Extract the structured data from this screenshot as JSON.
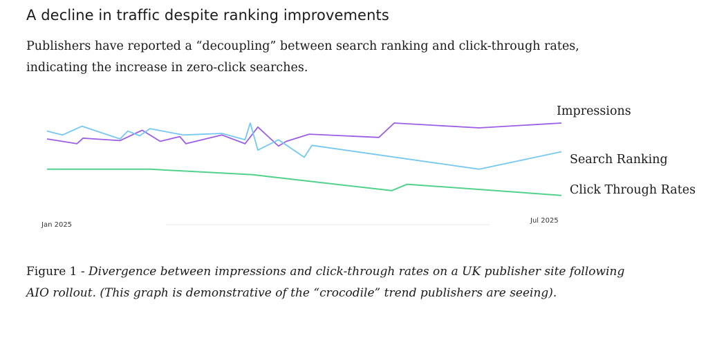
{
  "heading": "A decline in traffic despite ranking improvements",
  "intro": "Publishers have reported a “decoupling” between search ranking and click-through rates, indicating the increase in zero-click searches.",
  "caption": {
    "figure_number": "Figure 1 - ",
    "text": "Divergence between impressions and click-through rates on a UK publisher site following AIO rollout. (This graph is demonstrative of the “crocodile” trend publishers are seeing)."
  },
  "colors": {
    "impressions": "#9b5de5",
    "search_ranking": "#74c8f2",
    "click_through_rates": "#52d18c"
  },
  "chart_data": {
    "type": "line",
    "title": "",
    "xlabel": "",
    "ylabel": "",
    "x_tick_labels": [
      "Jan 2025",
      "Jul 2025"
    ],
    "xlim": [
      0,
      1
    ],
    "ylim": [
      0,
      100
    ],
    "grid": false,
    "legend": "inline-right",
    "series": [
      {
        "name": "Impressions",
        "color": "#9b5de5",
        "x": [
          0,
          0.058,
          0.07,
          0.142,
          0.185,
          0.22,
          0.258,
          0.27,
          0.34,
          0.385,
          0.41,
          0.45,
          0.465,
          0.51,
          0.645,
          0.675,
          0.84,
          1
        ],
        "y": [
          73,
          67,
          74,
          71,
          84,
          70,
          76,
          67,
          78,
          67,
          88,
          64,
          70,
          79,
          75,
          93,
          87,
          93
        ]
      },
      {
        "name": "Search Ranking",
        "color": "#74c8f2",
        "x": [
          0,
          0.03,
          0.068,
          0.142,
          0.157,
          0.18,
          0.2,
          0.265,
          0.34,
          0.385,
          0.395,
          0.41,
          0.45,
          0.5,
          0.515,
          0.84,
          1
        ],
        "y": [
          83,
          78,
          89,
          73,
          83,
          77,
          86,
          78,
          80,
          72,
          93,
          59,
          72,
          50,
          65,
          35,
          57
        ],
        "label": "Search Ranking"
      },
      {
        "name": "Click Through Rates",
        "color": "#52d18c",
        "x": [
          0,
          0.2,
          0.4,
          0.67,
          0.7,
          1
        ],
        "y": [
          35,
          35,
          28,
          8,
          16,
          2
        ]
      }
    ]
  }
}
